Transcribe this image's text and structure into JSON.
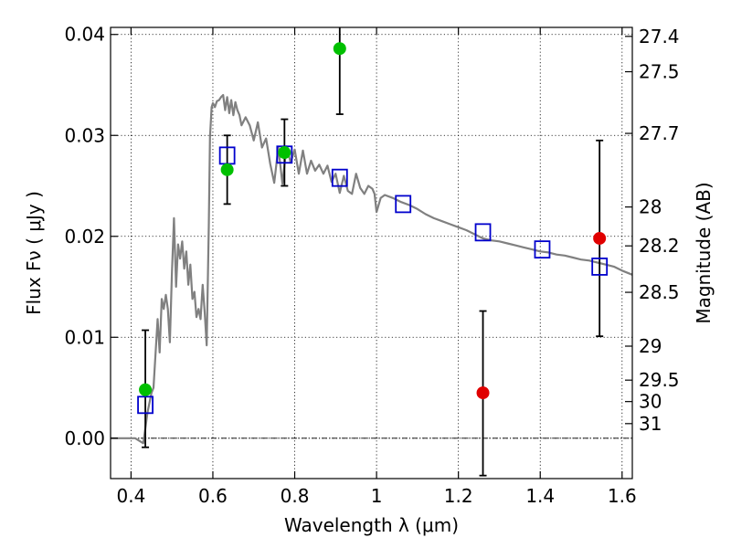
{
  "chart_data": {
    "type": "scatter",
    "xlabel": "Wavelength  λ (μm)",
    "ylabel": "Flux  Fν  ( μJy )",
    "y2label": "Magnitude (AB)",
    "xlim": [
      0.35,
      1.625
    ],
    "ylim": [
      -0.004,
      0.0407
    ],
    "grid": true,
    "x_ticks": [
      0.4,
      0.6,
      0.8,
      1.0,
      1.2,
      1.4,
      1.6
    ],
    "x_tick_labels": [
      "0.4",
      "0.6",
      "0.8",
      "1",
      "1.2",
      "1.4",
      "1.6"
    ],
    "y_ticks": [
      0.0,
      0.01,
      0.02,
      0.03,
      0.04
    ],
    "y_tick_labels": [
      "0.00",
      "0.01",
      "0.02",
      "0.03",
      "0.04"
    ],
    "y2_ticks": [
      {
        "label": "27.4",
        "mag": 27.4
      },
      {
        "label": "27.5",
        "mag": 27.5
      },
      {
        "label": "27.7",
        "mag": 27.7
      },
      {
        "label": "28",
        "mag": 28.0
      },
      {
        "label": "28.2",
        "mag": 28.2
      },
      {
        "label": "28.5",
        "mag": 28.5
      },
      {
        "label": "29",
        "mag": 29.0
      },
      {
        "label": "29.5",
        "mag": 29.5
      },
      {
        "label": "30",
        "mag": 30.0
      },
      {
        "label": "31",
        "mag": 31.0
      }
    ],
    "zero_line": 0.0,
    "sed_model": {
      "color": "#808080",
      "x": [
        0.35,
        0.41,
        0.43,
        0.435,
        0.44,
        0.45,
        0.455,
        0.46,
        0.465,
        0.47,
        0.475,
        0.48,
        0.485,
        0.49,
        0.495,
        0.5,
        0.505,
        0.51,
        0.515,
        0.52,
        0.525,
        0.53,
        0.535,
        0.54,
        0.545,
        0.55,
        0.555,
        0.56,
        0.565,
        0.57,
        0.575,
        0.58,
        0.585,
        0.59,
        0.593,
        0.597,
        0.6,
        0.605,
        0.61,
        0.615,
        0.62,
        0.625,
        0.63,
        0.635,
        0.64,
        0.645,
        0.65,
        0.655,
        0.66,
        0.665,
        0.67,
        0.68,
        0.69,
        0.7,
        0.71,
        0.72,
        0.73,
        0.74,
        0.75,
        0.76,
        0.77,
        0.78,
        0.79,
        0.8,
        0.81,
        0.82,
        0.83,
        0.84,
        0.85,
        0.86,
        0.87,
        0.88,
        0.89,
        0.9,
        0.91,
        0.92,
        0.93,
        0.94,
        0.95,
        0.96,
        0.97,
        0.98,
        0.99,
        0.995,
        1.0,
        1.01,
        1.02,
        1.04,
        1.06,
        1.08,
        1.1,
        1.12,
        1.14,
        1.16,
        1.18,
        1.2,
        1.22,
        1.24,
        1.26,
        1.28,
        1.3,
        1.32,
        1.34,
        1.36,
        1.38,
        1.4,
        1.42,
        1.44,
        1.46,
        1.48,
        1.5,
        1.52,
        1.54,
        1.56,
        1.58,
        1.6,
        1.625
      ],
      "y": [
        0.0,
        0.0,
        -0.0005,
        0.001,
        0.0025,
        0.0045,
        0.005,
        0.0085,
        0.0118,
        0.0085,
        0.0138,
        0.0128,
        0.0142,
        0.0128,
        0.0095,
        0.0165,
        0.0218,
        0.015,
        0.0192,
        0.0178,
        0.0195,
        0.0168,
        0.0185,
        0.0152,
        0.0172,
        0.0138,
        0.0145,
        0.012,
        0.0128,
        0.0118,
        0.0152,
        0.0125,
        0.0092,
        0.021,
        0.0298,
        0.0328,
        0.0332,
        0.0328,
        0.0334,
        0.0335,
        0.0338,
        0.034,
        0.0325,
        0.0338,
        0.0322,
        0.0335,
        0.032,
        0.0333,
        0.0325,
        0.032,
        0.031,
        0.0318,
        0.031,
        0.0295,
        0.0313,
        0.0288,
        0.0297,
        0.0272,
        0.0253,
        0.0288,
        0.0252,
        0.0289,
        0.0273,
        0.0286,
        0.0262,
        0.0285,
        0.0262,
        0.0275,
        0.0265,
        0.0271,
        0.0262,
        0.027,
        0.0254,
        0.0262,
        0.0243,
        0.026,
        0.0245,
        0.0242,
        0.0262,
        0.0248,
        0.0242,
        0.025,
        0.0247,
        0.0242,
        0.0224,
        0.0238,
        0.0241,
        0.0238,
        0.0234,
        0.0231,
        0.0227,
        0.0222,
        0.0218,
        0.0215,
        0.0212,
        0.0209,
        0.0206,
        0.0202,
        0.0198,
        0.0196,
        0.0195,
        0.0193,
        0.0191,
        0.0189,
        0.0187,
        0.0185,
        0.0184,
        0.0182,
        0.0181,
        0.0179,
        0.0177,
        0.0176,
        0.0174,
        0.0172,
        0.017,
        0.0166,
        0.0162
      ]
    },
    "series": [
      {
        "marker": "circle",
        "color": "#00c000",
        "points": [
          {
            "x": 0.435,
            "y": 0.0048,
            "yerr_low": 0.0057,
            "yerr_high": 0.0059
          },
          {
            "x": 0.635,
            "y": 0.0266,
            "yerr_low": 0.0034,
            "yerr_high": 0.0034
          },
          {
            "x": 0.775,
            "y": 0.0283,
            "yerr_low": 0.0033,
            "yerr_high": 0.0033
          },
          {
            "x": 0.91,
            "y": 0.0386,
            "yerr_low": 0.0065,
            "yerr_high": 0.0065
          }
        ]
      },
      {
        "marker": "circle",
        "color": "#e00000",
        "points": [
          {
            "x": 1.26,
            "y": 0.0045,
            "yerr_low": 0.0082,
            "yerr_high": 0.0081
          },
          {
            "x": 1.545,
            "y": 0.0198,
            "yerr_low": 0.0097,
            "yerr_high": 0.0097
          }
        ]
      },
      {
        "marker": "square",
        "color": "#0000cc",
        "points": [
          {
            "x": 0.435,
            "y": 0.0033
          },
          {
            "x": 0.635,
            "y": 0.028
          },
          {
            "x": 0.775,
            "y": 0.0281
          },
          {
            "x": 0.91,
            "y": 0.0258
          },
          {
            "x": 1.065,
            "y": 0.0232
          },
          {
            "x": 1.26,
            "y": 0.0204
          },
          {
            "x": 1.405,
            "y": 0.0187
          },
          {
            "x": 1.545,
            "y": 0.017
          }
        ]
      }
    ]
  }
}
